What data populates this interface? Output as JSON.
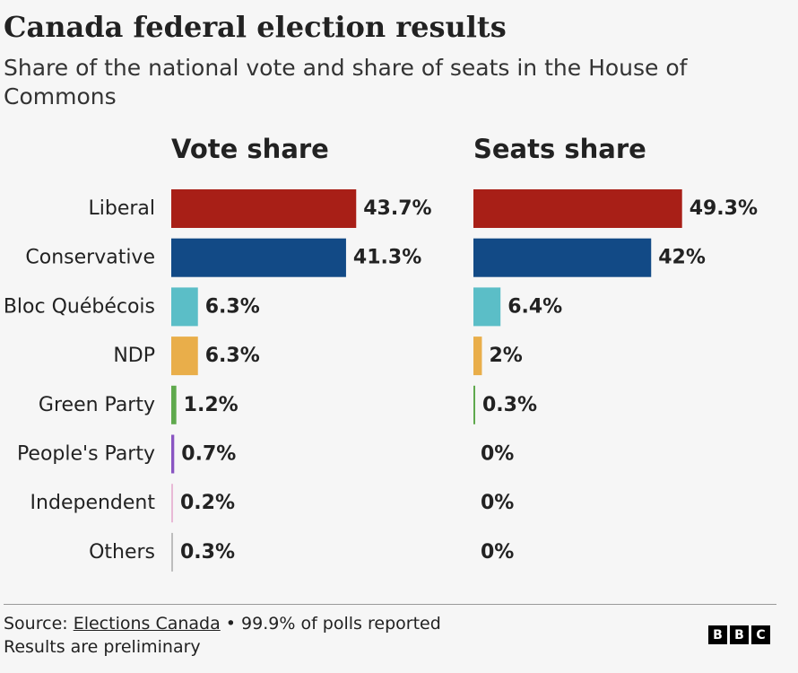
{
  "header": {
    "title": "Canada federal election results",
    "subtitle": "Share of the national vote and share of seats in the House of Commons"
  },
  "footer": {
    "source_prefix": "Source: ",
    "source_link": "Elections Canada",
    "source_suffix": " • 99.9% of polls reported",
    "note": "Results are preliminary",
    "logo": [
      "B",
      "B",
      "C"
    ]
  },
  "chart_data": {
    "type": "bar",
    "orientation": "horizontal",
    "categories": [
      "Liberal",
      "Conservative",
      "Bloc Québécois",
      "NDP",
      "Green Party",
      "People's Party",
      "Independent",
      "Others"
    ],
    "colors": [
      "#a81f17",
      "#124a86",
      "#5bbec7",
      "#e9ae4a",
      "#5fa94d",
      "#8a55c2",
      "#e8b9d6",
      "#bdbdbd"
    ],
    "series": [
      {
        "name": "Vote share",
        "values": [
          43.7,
          41.3,
          6.3,
          6.3,
          1.2,
          0.7,
          0.2,
          0.3
        ],
        "labels": [
          "43.7%",
          "41.3%",
          "6.3%",
          "6.3%",
          "1.2%",
          "0.7%",
          "0.2%",
          "0.3%"
        ]
      },
      {
        "name": "Seats share",
        "values": [
          49.3,
          42,
          6.4,
          2,
          0.3,
          0,
          0,
          0
        ],
        "labels": [
          "49.3%",
          "42%",
          "6.4%",
          "2%",
          "0.3%",
          "0%",
          "0%",
          "0%"
        ]
      }
    ],
    "xlim": [
      0,
      50
    ],
    "grid": false,
    "legend": "none"
  }
}
